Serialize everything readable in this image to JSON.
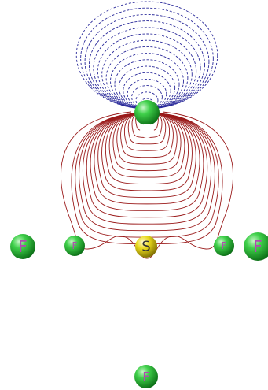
{
  "atoms": [
    {
      "label": "F"
    },
    {
      "label": "F"
    },
    {
      "label": "S"
    },
    {
      "label": "F"
    },
    {
      "label": "F"
    },
    {
      "label": "F"
    }
  ]
}
